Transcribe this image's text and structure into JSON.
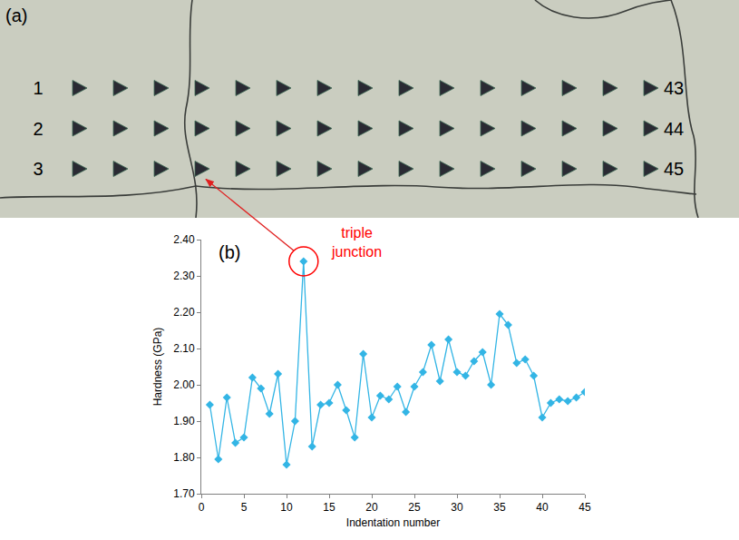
{
  "panel_a": {
    "label": "(a)",
    "rows": 3,
    "columns": 15,
    "left_labels": [
      "1",
      "2",
      "3"
    ],
    "right_labels": [
      "43",
      "44",
      "45"
    ]
  },
  "chart_data": {
    "type": "line",
    "panel_label": "(b)",
    "x_label": "Indentation number",
    "y_label": "Hardness (GPa)",
    "annotations": [
      "triple junction"
    ],
    "x": [
      1,
      2,
      3,
      4,
      5,
      6,
      7,
      8,
      9,
      10,
      11,
      12,
      13,
      14,
      15,
      16,
      17,
      18,
      19,
      20,
      21,
      22,
      23,
      24,
      25,
      26,
      27,
      28,
      29,
      30,
      31,
      32,
      33,
      34,
      35,
      36,
      37,
      38,
      39,
      40,
      41,
      42,
      43,
      44,
      45
    ],
    "values": [
      1.945,
      1.795,
      1.965,
      1.84,
      1.855,
      2.02,
      1.99,
      1.92,
      2.03,
      1.78,
      1.9,
      2.34,
      1.83,
      1.945,
      1.95,
      2.0,
      1.93,
      1.855,
      2.085,
      1.91,
      1.97,
      1.96,
      1.995,
      1.925,
      1.995,
      2.035,
      2.11,
      2.01,
      2.125,
      2.035,
      2.025,
      2.065,
      2.09,
      2.0,
      2.195,
      2.165,
      2.06,
      2.07,
      2.025,
      1.91,
      1.95,
      1.96,
      1.955,
      1.965,
      1.98
    ],
    "color": "#33b5e5",
    "marker": "diamond",
    "xlim": [
      0,
      45
    ],
    "xticks": [
      0,
      5,
      10,
      15,
      20,
      25,
      30,
      35,
      40,
      45
    ],
    "ylim": [
      1.7,
      2.4
    ],
    "yticks": [
      {
        "value": 1.7,
        "label": "1.70"
      },
      {
        "value": 1.8,
        "label": "1.80"
      },
      {
        "value": 1.9,
        "label": "1.90"
      },
      {
        "value": 2.0,
        "label": "2.00"
      },
      {
        "value": 2.1,
        "label": "2.10"
      },
      {
        "value": 2.2,
        "label": "2.20"
      },
      {
        "value": 2.3,
        "label": "2.30"
      },
      {
        "value": 2.4,
        "label": "2.40"
      }
    ],
    "grid": false
  }
}
